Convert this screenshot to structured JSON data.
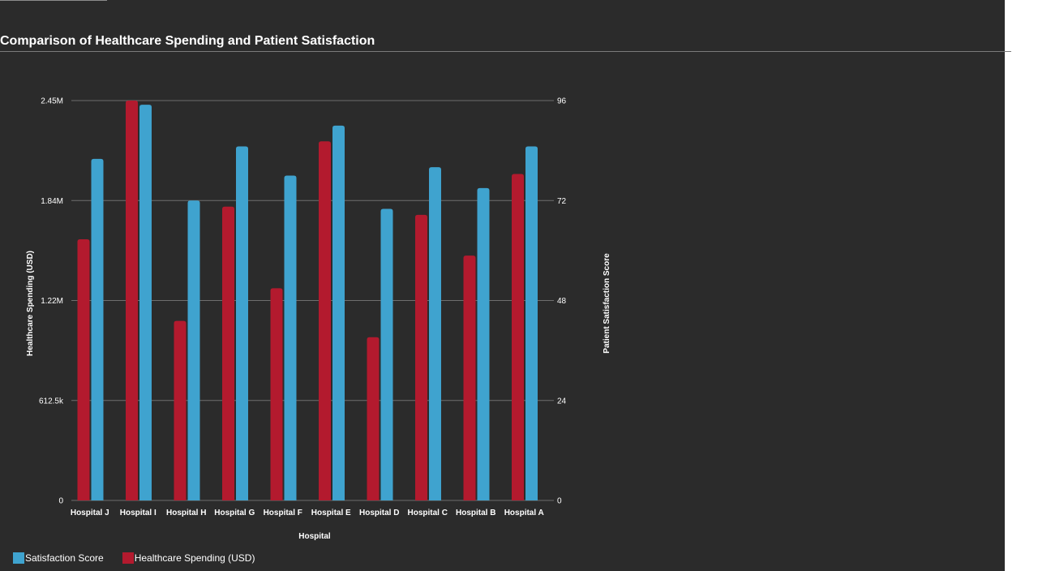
{
  "title": "Comparison of Healthcare Spending and Patient Satisfaction",
  "colors": {
    "background": "#2b2b2b",
    "satisfaction": "#3fa3cf",
    "spending": "#b31a2e",
    "grid": "#6e6e6e"
  },
  "legend": {
    "placement": "bottom-left",
    "items": [
      {
        "label": "Satisfaction Score",
        "color": "#3fa3cf"
      },
      {
        "label": "Healthcare Spending (USD)",
        "color": "#b31a2e"
      }
    ]
  },
  "chart_data": {
    "type": "bar",
    "title": "Comparison of Healthcare Spending and Patient Satisfaction",
    "xlabel": "Hospital",
    "ylabel_left": "Healthcare Spending (USD)",
    "ylabel_right": "Patient Satisfaction Score",
    "grid": true,
    "categories": [
      "Hospital J",
      "Hospital I",
      "Hospital H",
      "Hospital G",
      "Hospital F",
      "Hospital E",
      "Hospital D",
      "Hospital C",
      "Hospital B",
      "Hospital A"
    ],
    "left_axis": {
      "ylim": [
        0,
        2450000
      ],
      "tick_labels": [
        "0",
        "612.5k",
        "1.22M",
        "1.84M",
        "2.45M"
      ]
    },
    "right_axis": {
      "ylim": [
        0,
        96
      ],
      "tick_labels": [
        "0",
        "24",
        "48",
        "72",
        "96"
      ]
    },
    "series": [
      {
        "name": "Healthcare Spending (USD)",
        "axis": "left",
        "values": [
          1600000,
          2450000,
          1100000,
          1800000,
          1300000,
          2200000,
          1000000,
          1750000,
          1500000,
          2000000
        ]
      },
      {
        "name": "Satisfaction Score",
        "axis": "right",
        "values": [
          82,
          95,
          72,
          85,
          78,
          90,
          70,
          80,
          75,
          85
        ]
      }
    ]
  }
}
